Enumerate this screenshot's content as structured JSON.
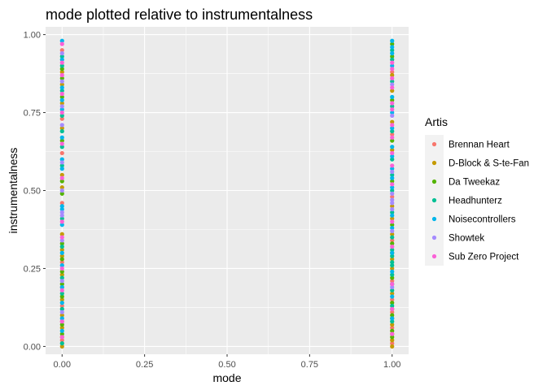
{
  "chart_data": {
    "type": "scatter",
    "title": "mode plotted relative to instrumentalness",
    "xlabel": "mode",
    "ylabel": "instrumentalness",
    "xlim": [
      -0.05,
      1.05
    ],
    "ylim": [
      -0.025,
      1.025
    ],
    "x_ticks": [
      "0.00",
      "0.25",
      "0.50",
      "0.75",
      "1.00"
    ],
    "y_ticks": [
      "0.00",
      "0.25",
      "0.50",
      "0.75",
      "1.00"
    ],
    "grid": true,
    "legend": {
      "title": "Artis",
      "position": "right",
      "items": [
        {
          "label": "Brennan Heart",
          "color": "#F8766D"
        },
        {
          "label": "D-Block & S-te-Fan",
          "color": "#C49A00"
        },
        {
          "label": "Da Tweekaz",
          "color": "#53B400"
        },
        {
          "label": "Headhunterz",
          "color": "#00C094"
        },
        {
          "label": "Noisecontrollers",
          "color": "#00B6EB"
        },
        {
          "label": "Showtek",
          "color": "#A58AFF"
        },
        {
          "label": "Sub Zero Project",
          "color": "#FB61D7"
        }
      ]
    },
    "series": [
      {
        "name": "Brennan Heart",
        "color": "#F8766D",
        "points": [
          [
            0,
            0.02
          ],
          [
            0,
            0.08
          ],
          [
            0,
            0.13
          ],
          [
            0,
            0.19
          ],
          [
            0,
            0.27
          ],
          [
            0,
            0.46
          ],
          [
            0,
            0.62
          ],
          [
            0,
            0.73
          ],
          [
            0,
            0.95
          ],
          [
            1,
            0.01
          ],
          [
            1,
            0.06
          ],
          [
            1,
            0.11
          ],
          [
            1,
            0.15
          ],
          [
            1,
            0.21
          ],
          [
            1,
            0.34
          ],
          [
            1,
            0.48
          ],
          [
            1,
            0.68
          ],
          [
            1,
            0.88
          ]
        ]
      },
      {
        "name": "D-Block & S-te-Fan",
        "color": "#C49A00",
        "points": [
          [
            0,
            0.0
          ],
          [
            0,
            0.03
          ],
          [
            0,
            0.06
          ],
          [
            0,
            0.1
          ],
          [
            0,
            0.15
          ],
          [
            0,
            0.23
          ],
          [
            0,
            0.29
          ],
          [
            0,
            0.31
          ],
          [
            0,
            0.36
          ],
          [
            0,
            0.51
          ],
          [
            0,
            0.55
          ],
          [
            0,
            0.7
          ],
          [
            0,
            0.78
          ],
          [
            0,
            0.84
          ],
          [
            0,
            0.88
          ],
          [
            1,
            0.0
          ],
          [
            1,
            0.02
          ],
          [
            1,
            0.04
          ],
          [
            1,
            0.07
          ],
          [
            1,
            0.09
          ],
          [
            1,
            0.12
          ],
          [
            1,
            0.17
          ],
          [
            1,
            0.25
          ],
          [
            1,
            0.28
          ],
          [
            1,
            0.36
          ],
          [
            1,
            0.41
          ],
          [
            1,
            0.45
          ],
          [
            1,
            0.63
          ],
          [
            1,
            0.72
          ],
          [
            1,
            0.82
          ],
          [
            1,
            0.87
          ]
        ]
      },
      {
        "name": "Da Tweekaz",
        "color": "#53B400",
        "points": [
          [
            0,
            0.04
          ],
          [
            0,
            0.07
          ],
          [
            0,
            0.16
          ],
          [
            0,
            0.2
          ],
          [
            0,
            0.24
          ],
          [
            0,
            0.28
          ],
          [
            0,
            0.33
          ],
          [
            0,
            0.49
          ],
          [
            0,
            0.53
          ],
          [
            0,
            0.66
          ],
          [
            0,
            0.8
          ],
          [
            0,
            0.86
          ],
          [
            0,
            0.89
          ],
          [
            1,
            0.03
          ],
          [
            1,
            0.05
          ],
          [
            1,
            0.1
          ],
          [
            1,
            0.14
          ],
          [
            1,
            0.22
          ],
          [
            1,
            0.3
          ],
          [
            1,
            0.33
          ],
          [
            1,
            0.39
          ],
          [
            1,
            0.53
          ],
          [
            1,
            0.66
          ],
          [
            1,
            0.79
          ],
          [
            1,
            0.93
          ],
          [
            1,
            0.97
          ]
        ]
      },
      {
        "name": "Headhunterz",
        "color": "#00C094",
        "points": [
          [
            0,
            0.01
          ],
          [
            0,
            0.12
          ],
          [
            0,
            0.17
          ],
          [
            0,
            0.22
          ],
          [
            0,
            0.32
          ],
          [
            0,
            0.41
          ],
          [
            0,
            0.58
          ],
          [
            0,
            0.64
          ],
          [
            0,
            0.69
          ],
          [
            0,
            0.74
          ],
          [
            0,
            0.82
          ],
          [
            0,
            0.9
          ],
          [
            0,
            0.93
          ],
          [
            1,
            0.08
          ],
          [
            1,
            0.13
          ],
          [
            1,
            0.18
          ],
          [
            1,
            0.2
          ],
          [
            1,
            0.23
          ],
          [
            1,
            0.26
          ],
          [
            1,
            0.27
          ],
          [
            1,
            0.29
          ],
          [
            1,
            0.31
          ],
          [
            1,
            0.35
          ],
          [
            1,
            0.43
          ],
          [
            1,
            0.5
          ],
          [
            1,
            0.55
          ],
          [
            1,
            0.6
          ],
          [
            1,
            0.69
          ],
          [
            1,
            0.77
          ],
          [
            1,
            0.85
          ],
          [
            1,
            0.92
          ],
          [
            1,
            0.95
          ]
        ]
      },
      {
        "name": "Noisecontrollers",
        "color": "#00B6EB",
        "points": [
          [
            0,
            0.05
          ],
          [
            0,
            0.09
          ],
          [
            0,
            0.14
          ],
          [
            0,
            0.19
          ],
          [
            0,
            0.26
          ],
          [
            0,
            0.3
          ],
          [
            0,
            0.39
          ],
          [
            0,
            0.44
          ],
          [
            0,
            0.45
          ],
          [
            0,
            0.57
          ],
          [
            0,
            0.6
          ],
          [
            0,
            0.67
          ],
          [
            0,
            0.76
          ],
          [
            0,
            0.79
          ],
          [
            0,
            0.83
          ],
          [
            0,
            0.92
          ],
          [
            0,
            0.98
          ],
          [
            1,
            0.09
          ],
          [
            1,
            0.16
          ],
          [
            1,
            0.24
          ],
          [
            1,
            0.3
          ],
          [
            1,
            0.38
          ],
          [
            1,
            0.42
          ],
          [
            1,
            0.51
          ],
          [
            1,
            0.54
          ],
          [
            1,
            0.57
          ],
          [
            1,
            0.61
          ],
          [
            1,
            0.64
          ],
          [
            1,
            0.7
          ],
          [
            1,
            0.75
          ],
          [
            1,
            0.8
          ],
          [
            1,
            0.9
          ],
          [
            1,
            0.94
          ],
          [
            1,
            0.96
          ],
          [
            1,
            0.98
          ]
        ]
      },
      {
        "name": "Showtek",
        "color": "#A58AFF",
        "points": [
          [
            0,
            0.11
          ],
          [
            0,
            0.21
          ],
          [
            0,
            0.34
          ],
          [
            0,
            0.42
          ],
          [
            0,
            0.43
          ],
          [
            0,
            0.5
          ],
          [
            0,
            0.59
          ],
          [
            0,
            0.71
          ],
          [
            0,
            0.77
          ],
          [
            0,
            0.85
          ],
          [
            0,
            0.94
          ],
          [
            1,
            0.19
          ],
          [
            1,
            0.37
          ],
          [
            1,
            0.44
          ],
          [
            1,
            0.46
          ],
          [
            1,
            0.47
          ],
          [
            1,
            0.49
          ],
          [
            1,
            0.56
          ],
          [
            1,
            0.74
          ],
          [
            1,
            0.84
          ]
        ]
      },
      {
        "name": "Sub Zero Project",
        "color": "#FB61D7",
        "points": [
          [
            0,
            0.03
          ],
          [
            0,
            0.08
          ],
          [
            0,
            0.18
          ],
          [
            0,
            0.25
          ],
          [
            0,
            0.35
          ],
          [
            0,
            0.4
          ],
          [
            0,
            0.54
          ],
          [
            0,
            0.65
          ],
          [
            0,
            0.75
          ],
          [
            0,
            0.81
          ],
          [
            0,
            0.87
          ],
          [
            0,
            0.91
          ],
          [
            0,
            0.97
          ],
          [
            1,
            0.04
          ],
          [
            1,
            0.12
          ],
          [
            1,
            0.2
          ],
          [
            1,
            0.32
          ],
          [
            1,
            0.4
          ],
          [
            1,
            0.52
          ],
          [
            1,
            0.58
          ],
          [
            1,
            0.62
          ],
          [
            1,
            0.67
          ],
          [
            1,
            0.71
          ],
          [
            1,
            0.76
          ],
          [
            1,
            0.78
          ],
          [
            1,
            0.83
          ],
          [
            1,
            0.86
          ],
          [
            1,
            0.89
          ],
          [
            1,
            0.91
          ]
        ]
      }
    ]
  }
}
